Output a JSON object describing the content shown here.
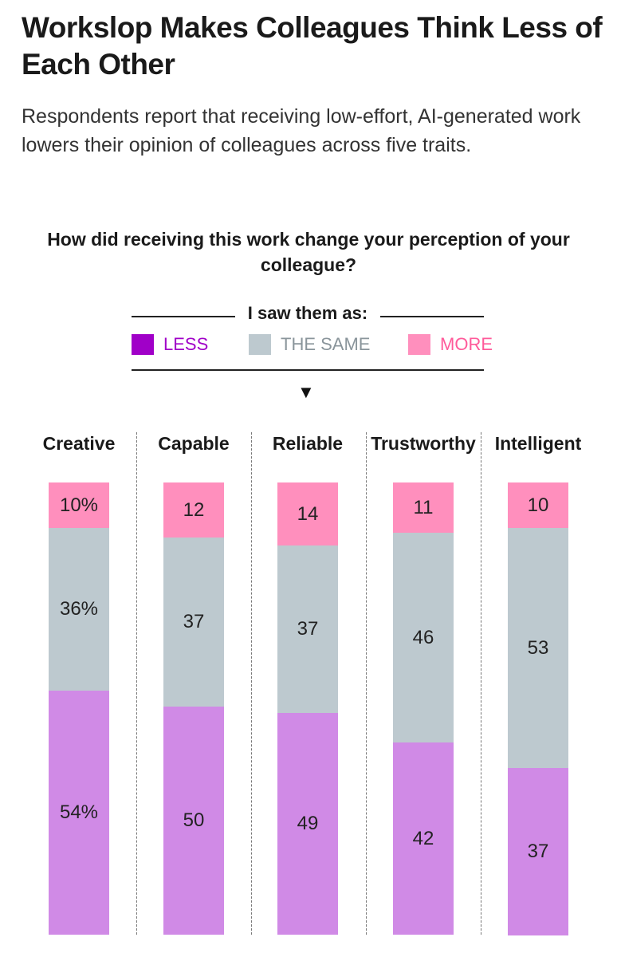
{
  "header": {
    "title": "Workslop Makes Colleagues Think Less of Each Other",
    "subtitle": "Respondents report that receiving low-effort, AI-generated work lowers their opinion of colleagues across five traits."
  },
  "legend": {
    "heading": "I saw them as:",
    "items": [
      {
        "key": "less",
        "label": "LESS",
        "color": "#a000c8",
        "text_color": "#a000c8"
      },
      {
        "key": "same",
        "label": "THE SAME",
        "color": "#bdc9cf",
        "text_color": "#8a959b"
      },
      {
        "key": "more",
        "label": "MORE",
        "color": "#ff8fbd",
        "text_color": "#ff5a9a"
      }
    ]
  },
  "chart_data": {
    "type": "bar",
    "stacked": true,
    "title": "How did receiving this work change your perception of your colleague?",
    "unit": "%",
    "categories": [
      "Creative",
      "Capable",
      "Reliable",
      "Trustworthy",
      "Intelligent"
    ],
    "series": [
      {
        "name": "MORE",
        "values": [
          10,
          12,
          14,
          11,
          10
        ],
        "color": "#ff8fbd"
      },
      {
        "name": "THE SAME",
        "values": [
          36,
          37,
          37,
          46,
          53
        ],
        "color": "#bdc9cf"
      },
      {
        "name": "LESS",
        "values": [
          54,
          50,
          49,
          42,
          37
        ],
        "color": "#d08ae6"
      }
    ],
    "value_labels": [
      [
        "10%",
        "36%",
        "54%"
      ],
      [
        "12",
        "37",
        "50"
      ],
      [
        "14",
        "37",
        "49"
      ],
      [
        "11",
        "46",
        "42"
      ],
      [
        "10",
        "53",
        "37"
      ]
    ]
  }
}
